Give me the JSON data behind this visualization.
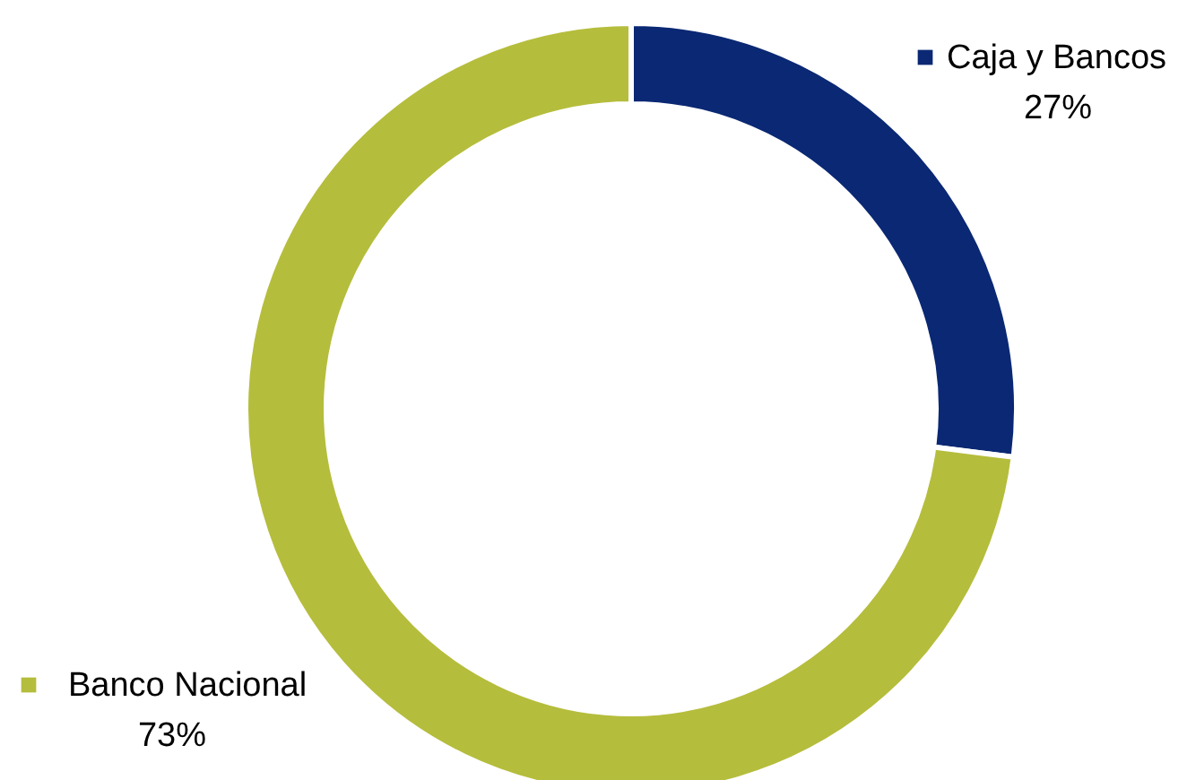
{
  "chart_data": {
    "type": "donut",
    "categories": [
      "Caja y Bancos",
      "Banco Nacional"
    ],
    "values": [
      27,
      73
    ],
    "colors": [
      "#0a2873",
      "#b5bd3c"
    ],
    "value_labels": [
      "27%",
      "73%"
    ],
    "legend": "right"
  }
}
